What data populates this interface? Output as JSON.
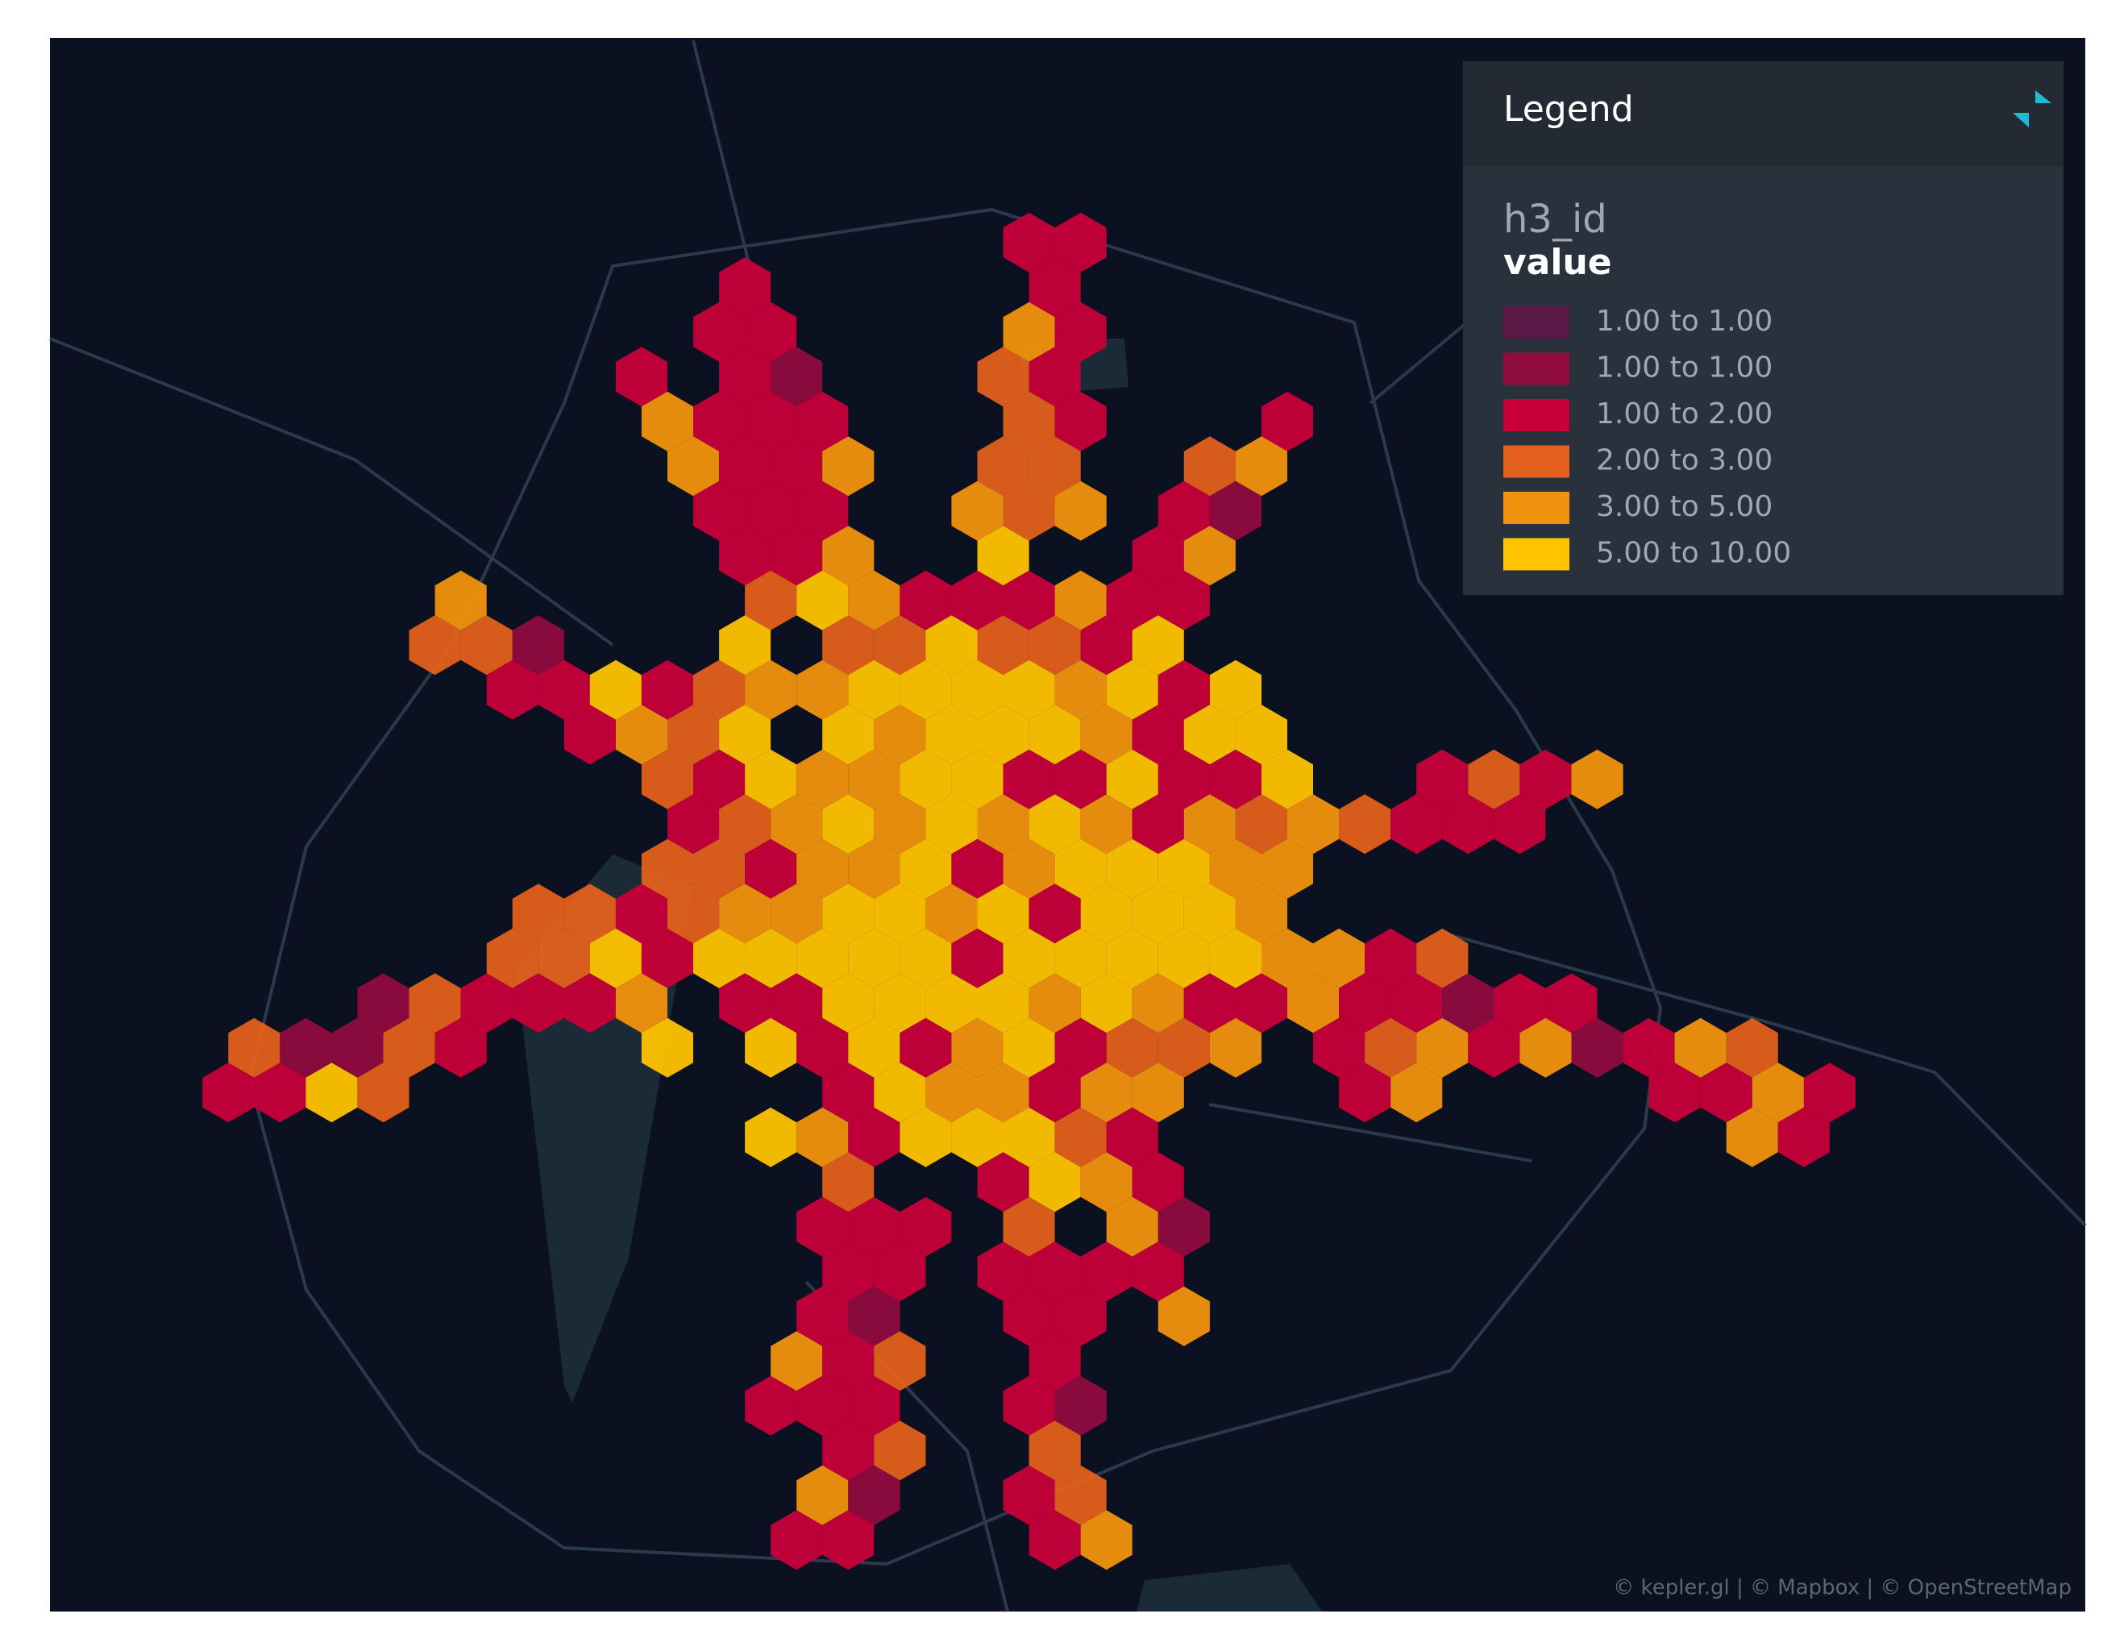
{
  "legend": {
    "title": "Legend",
    "layer": "h3_id",
    "field": "value",
    "items": [
      {
        "label": "1.00 to 1.00",
        "color": "#5A1846"
      },
      {
        "label": "1.00 to 1.00",
        "color": "#900C3F"
      },
      {
        "label": "1.00 to 2.00",
        "color": "#C70039"
      },
      {
        "label": "2.00 to 3.00",
        "color": "#E3611C"
      },
      {
        "label": "3.00 to 5.00",
        "color": "#F1920E"
      },
      {
        "label": "5.00 to 10.00",
        "color": "#FFC300"
      }
    ]
  },
  "attribution": "© kepler.gl | © Mapbox | © OpenStreetMap"
}
